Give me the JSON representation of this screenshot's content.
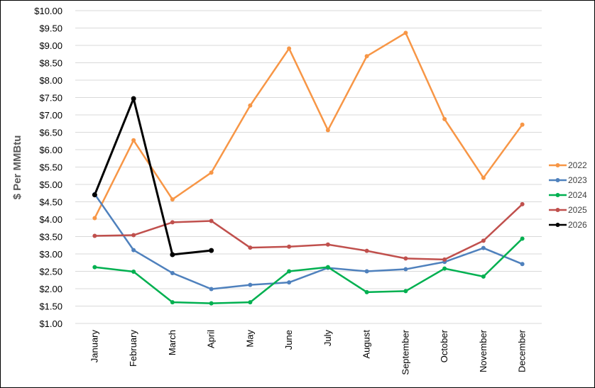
{
  "chart_data": {
    "type": "line",
    "title": "",
    "xlabel": "",
    "ylabel": "$ Per MMBtu",
    "ylim": [
      1.0,
      10.0
    ],
    "y_ticks": [
      "$1.00",
      "$1.50",
      "$2.00",
      "$2.50",
      "$3.00",
      "$3.50",
      "$4.00",
      "$4.50",
      "$5.00",
      "$5.50",
      "$6.00",
      "$6.50",
      "$7.00",
      "$7.50",
      "$8.00",
      "$8.50",
      "$9.00",
      "$9.50",
      "$10.00"
    ],
    "categories": [
      "January",
      "February",
      "March",
      "April",
      "May",
      "June",
      "July",
      "August",
      "September",
      "October",
      "November",
      "December"
    ],
    "grid": "horizontal",
    "legend_position": "right",
    "series": [
      {
        "name": "2022",
        "color": "#F79646",
        "values": [
          4.03,
          6.27,
          4.57,
          5.34,
          7.27,
          8.91,
          6.56,
          8.69,
          9.36,
          6.88,
          5.19,
          6.72
        ]
      },
      {
        "name": "2023",
        "color": "#4F81BD",
        "values": [
          4.72,
          3.11,
          2.45,
          1.99,
          2.11,
          2.18,
          2.6,
          2.5,
          2.56,
          2.77,
          3.17,
          2.71
        ]
      },
      {
        "name": "2024",
        "color": "#00B050",
        "values": [
          2.62,
          2.49,
          1.61,
          1.58,
          1.61,
          2.5,
          2.62,
          1.9,
          1.93,
          2.58,
          2.35,
          3.44
        ]
      },
      {
        "name": "2025",
        "color": "#C0504D",
        "values": [
          3.52,
          3.54,
          3.91,
          3.95,
          3.18,
          3.21,
          3.27,
          3.09,
          2.87,
          2.84,
          3.38,
          4.43
        ]
      },
      {
        "name": "2026",
        "color": "#000000",
        "values": [
          4.7,
          7.47,
          2.98,
          3.1,
          null,
          null,
          null,
          null,
          null,
          null,
          null,
          null
        ]
      }
    ]
  }
}
